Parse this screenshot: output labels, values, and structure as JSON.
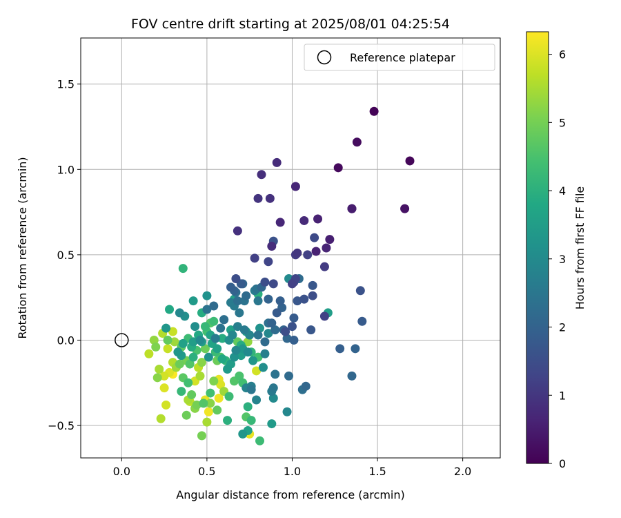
{
  "chart_data": {
    "type": "scatter",
    "title": "FOV centre drift starting at 2025/08/01 04:25:54",
    "xlabel": "Angular distance from reference (arcmin)",
    "ylabel": "Rotation from reference (arcmin)",
    "xlim": [
      -0.24,
      2.22
    ],
    "ylim": [
      -0.69,
      1.77
    ],
    "xticks": [
      0.0,
      0.5,
      1.0,
      1.5,
      2.0
    ],
    "xtick_labels": [
      "0.0",
      "0.5",
      "1.0",
      "1.5",
      "2.0"
    ],
    "yticks": [
      -0.5,
      0.0,
      0.5,
      1.0,
      1.5
    ],
    "ytick_labels": [
      "−0.5",
      "0.0",
      "0.5",
      "1.0",
      "1.5"
    ],
    "grid": true,
    "colormap": "viridis",
    "colorbar": {
      "label": "Hours from first FF file",
      "range": [
        0,
        6.33
      ],
      "ticks": [
        0,
        1,
        2,
        3,
        4,
        5,
        6
      ],
      "tick_labels": [
        "0",
        "1",
        "2",
        "3",
        "4",
        "5",
        "6"
      ]
    },
    "legend": {
      "position": "top-right",
      "entries": [
        "Reference platepar"
      ]
    },
    "reference_point": {
      "x": 0.0,
      "y": 0.0,
      "label": "Reference platepar"
    },
    "points": [
      [
        1.48,
        1.34,
        0.05
      ],
      [
        1.69,
        1.05,
        0.1
      ],
      [
        1.27,
        1.01,
        0.15
      ],
      [
        1.38,
        1.16,
        0.2
      ],
      [
        1.66,
        0.77,
        0.3
      ],
      [
        1.35,
        0.77,
        0.5
      ],
      [
        1.35,
        0.77,
        0.55
      ],
      [
        0.91,
        1.04,
        0.8
      ],
      [
        0.82,
        0.97,
        0.85
      ],
      [
        1.02,
        0.9,
        0.7
      ],
      [
        0.87,
        0.83,
        0.9
      ],
      [
        0.8,
        0.83,
        0.95
      ],
      [
        0.93,
        0.69,
        0.7
      ],
      [
        1.15,
        0.71,
        0.6
      ],
      [
        1.07,
        0.7,
        0.75
      ],
      [
        0.68,
        0.64,
        0.9
      ],
      [
        1.22,
        0.59,
        0.55
      ],
      [
        1.2,
        0.54,
        0.65
      ],
      [
        1.14,
        0.52,
        0.6
      ],
      [
        1.03,
        0.51,
        1.0
      ],
      [
        1.02,
        0.5,
        1.1
      ],
      [
        0.88,
        0.55,
        0.8
      ],
      [
        0.78,
        0.48,
        1.2
      ],
      [
        0.86,
        0.46,
        1.3
      ],
      [
        0.89,
        0.58,
        1.6
      ],
      [
        1.13,
        0.6,
        1.4
      ],
      [
        1.09,
        0.5,
        1.2
      ],
      [
        1.19,
        0.43,
        1.1
      ],
      [
        1.4,
        0.29,
        1.6
      ],
      [
        1.02,
        0.36,
        1.3
      ],
      [
        1.01,
        0.34,
        1.4
      ],
      [
        1.0,
        0.33,
        1.2
      ],
      [
        0.84,
        0.34,
        1.5
      ],
      [
        0.89,
        0.33,
        1.4
      ],
      [
        0.67,
        0.36,
        1.5
      ],
      [
        0.7,
        0.33,
        1.8
      ],
      [
        0.64,
        0.31,
        1.9
      ],
      [
        0.66,
        0.29,
        2.0
      ],
      [
        0.73,
        0.26,
        2.2
      ],
      [
        0.79,
        0.3,
        2.4
      ],
      [
        0.82,
        0.31,
        2.1
      ],
      [
        0.8,
        0.23,
        2.5
      ],
      [
        0.86,
        0.24,
        2.0
      ],
      [
        0.93,
        0.23,
        1.9
      ],
      [
        0.94,
        0.19,
        2.0
      ],
      [
        0.91,
        0.16,
        1.8
      ],
      [
        1.03,
        0.23,
        1.7
      ],
      [
        1.07,
        0.24,
        1.6
      ],
      [
        1.12,
        0.26,
        1.5
      ],
      [
        1.12,
        0.32,
        1.7
      ],
      [
        1.19,
        0.14,
        1.2
      ],
      [
        1.21,
        0.16,
        3.5
      ],
      [
        0.98,
        0.36,
        3.0
      ],
      [
        1.04,
        0.36,
        2.2
      ],
      [
        1.01,
        0.13,
        1.8
      ],
      [
        1.0,
        0.08,
        1.6
      ],
      [
        0.95,
        0.06,
        2.0
      ],
      [
        0.97,
        0.01,
        2.1
      ],
      [
        0.96,
        0.05,
        1.5
      ],
      [
        1.01,
        0.0,
        1.9
      ],
      [
        1.11,
        0.06,
        1.7
      ],
      [
        1.41,
        0.11,
        1.8
      ],
      [
        1.28,
        -0.05,
        1.9
      ],
      [
        1.37,
        -0.05,
        2.0
      ],
      [
        1.35,
        -0.21,
        2.1
      ],
      [
        0.98,
        -0.21,
        2.2
      ],
      [
        1.06,
        -0.29,
        2.3
      ],
      [
        1.08,
        -0.27,
        2.1
      ],
      [
        0.9,
        -0.2,
        2.4
      ],
      [
        0.89,
        -0.28,
        2.5
      ],
      [
        0.88,
        -0.3,
        2.6
      ],
      [
        0.89,
        -0.34,
        3.0
      ],
      [
        0.97,
        -0.42,
        2.9
      ],
      [
        0.88,
        -0.49,
        3.4
      ],
      [
        0.79,
        -0.35,
        2.8
      ],
      [
        0.76,
        -0.29,
        2.5
      ],
      [
        0.76,
        -0.27,
        2.7
      ],
      [
        0.83,
        -0.16,
        3.1
      ],
      [
        0.77,
        -0.12,
        3.3
      ],
      [
        0.74,
        -0.07,
        3.0
      ],
      [
        0.7,
        -0.09,
        3.5
      ],
      [
        0.66,
        -0.1,
        3.2
      ],
      [
        0.62,
        -0.17,
        3.4
      ],
      [
        0.59,
        -0.11,
        3.8
      ],
      [
        0.56,
        -0.05,
        3.6
      ],
      [
        0.63,
        0.0,
        3.1
      ],
      [
        0.65,
        0.03,
        2.9
      ],
      [
        0.68,
        0.08,
        2.7
      ],
      [
        0.72,
        0.06,
        2.6
      ],
      [
        0.75,
        0.03,
        2.8
      ],
      [
        0.8,
        0.03,
        2.4
      ],
      [
        0.84,
        -0.08,
        2.7
      ],
      [
        0.86,
        0.1,
        2.3
      ],
      [
        0.88,
        0.1,
        2.0
      ],
      [
        0.81,
        0.07,
        3.2
      ],
      [
        0.73,
        0.05,
        3.6
      ],
      [
        0.71,
        -0.05,
        3.3
      ],
      [
        0.69,
        0.16,
        2.5
      ],
      [
        0.66,
        0.24,
        3.6
      ],
      [
        0.72,
        0.23,
        2.4
      ],
      [
        0.64,
        0.22,
        2.6
      ],
      [
        0.6,
        0.12,
        2.3
      ],
      [
        0.58,
        0.07,
        2.4
      ],
      [
        0.55,
        0.01,
        2.6
      ],
      [
        0.5,
        0.18,
        2.4
      ],
      [
        0.5,
        0.26,
        3.2
      ],
      [
        0.42,
        0.23,
        3.4
      ],
      [
        0.37,
        0.14,
        3.1
      ],
      [
        0.34,
        0.16,
        2.9
      ],
      [
        0.28,
        0.18,
        3.8
      ],
      [
        0.26,
        0.07,
        3.3
      ],
      [
        0.36,
        0.42,
        4.1
      ],
      [
        0.47,
        0.16,
        3.9
      ],
      [
        0.49,
        0.08,
        4.2
      ],
      [
        0.5,
        0.05,
        4.4
      ],
      [
        0.52,
        0.1,
        4.6
      ],
      [
        0.54,
        0.11,
        4.3
      ],
      [
        0.52,
        0.03,
        3.7
      ],
      [
        0.46,
        0.0,
        3.0
      ],
      [
        0.42,
        -0.01,
        3.5
      ],
      [
        0.39,
        0.01,
        4.3
      ],
      [
        0.35,
        -0.04,
        4.7
      ],
      [
        0.31,
        -0.01,
        5.4
      ],
      [
        0.27,
        0.0,
        4.8
      ],
      [
        0.3,
        0.05,
        5.8
      ],
      [
        0.24,
        0.04,
        5.6
      ],
      [
        0.19,
        0.0,
        5.3
      ],
      [
        0.2,
        -0.04,
        5.1
      ],
      [
        0.16,
        -0.08,
        5.7
      ],
      [
        0.22,
        -0.17,
        5.5
      ],
      [
        0.21,
        -0.22,
        5.2
      ],
      [
        0.25,
        -0.21,
        5.9
      ],
      [
        0.28,
        -0.19,
        6.0
      ],
      [
        0.3,
        -0.2,
        6.3
      ],
      [
        0.32,
        -0.16,
        5.4
      ],
      [
        0.34,
        -0.14,
        4.9
      ],
      [
        0.35,
        -0.09,
        3.4
      ],
      [
        0.38,
        -0.12,
        5.0
      ],
      [
        0.4,
        -0.14,
        4.6
      ],
      [
        0.42,
        -0.1,
        4.0
      ],
      [
        0.45,
        -0.16,
        5.7
      ],
      [
        0.46,
        -0.21,
        5.5
      ],
      [
        0.43,
        -0.24,
        5.9
      ],
      [
        0.39,
        -0.25,
        4.4
      ],
      [
        0.36,
        -0.22,
        4.7
      ],
      [
        0.35,
        -0.3,
        4.2
      ],
      [
        0.39,
        -0.35,
        5.5
      ],
      [
        0.4,
        -0.36,
        5.7
      ],
      [
        0.44,
        -0.38,
        5.0
      ],
      [
        0.41,
        -0.32,
        4.8
      ],
      [
        0.43,
        -0.4,
        5.2
      ],
      [
        0.38,
        -0.44,
        4.9
      ],
      [
        0.26,
        -0.38,
        5.9
      ],
      [
        0.23,
        -0.46,
        5.6
      ],
      [
        0.25,
        -0.28,
        6.0
      ],
      [
        0.3,
        -0.13,
        5.6
      ],
      [
        0.27,
        -0.05,
        5.8
      ],
      [
        0.48,
        -0.37,
        4.6
      ],
      [
        0.51,
        -0.42,
        6.2
      ],
      [
        0.5,
        -0.48,
        5.5
      ],
      [
        0.47,
        -0.56,
        5.0
      ],
      [
        0.52,
        -0.31,
        4.4
      ],
      [
        0.54,
        -0.24,
        5.1
      ],
      [
        0.57,
        -0.23,
        6.1
      ],
      [
        0.58,
        -0.26,
        6.0
      ],
      [
        0.6,
        -0.3,
        5.4
      ],
      [
        0.63,
        -0.33,
        4.3
      ],
      [
        0.62,
        -0.47,
        4.0
      ],
      [
        0.56,
        -0.41,
        4.8
      ],
      [
        0.52,
        -0.37,
        5.2
      ],
      [
        0.49,
        -0.35,
        6.1
      ],
      [
        0.57,
        -0.34,
        6.2
      ],
      [
        0.66,
        -0.24,
        4.6
      ],
      [
        0.69,
        -0.21,
        4.5
      ],
      [
        0.71,
        -0.25,
        4.4
      ],
      [
        0.73,
        -0.28,
        2.8
      ],
      [
        0.74,
        -0.39,
        4.0
      ],
      [
        0.73,
        -0.45,
        4.6
      ],
      [
        0.76,
        -0.47,
        4.2
      ],
      [
        0.75,
        -0.55,
        6.1
      ],
      [
        0.74,
        -0.53,
        3.6
      ],
      [
        0.71,
        -0.55,
        3.3
      ],
      [
        0.81,
        -0.59,
        4.3
      ],
      [
        0.79,
        -0.18,
        5.9
      ],
      [
        0.8,
        -0.1,
        4.4
      ],
      [
        0.76,
        -0.07,
        4.1
      ],
      [
        0.68,
        -0.01,
        4.8
      ],
      [
        0.7,
        -0.03,
        3.9
      ],
      [
        0.74,
        -0.01,
        5.3
      ],
      [
        0.64,
        0.06,
        3.6
      ],
      [
        0.59,
        0.01,
        3.9
      ],
      [
        0.53,
        -0.02,
        3.7
      ],
      [
        0.49,
        -0.05,
        4.9
      ],
      [
        0.47,
        -0.01,
        3.4
      ],
      [
        0.45,
        0.03,
        3.8
      ],
      [
        0.43,
        0.08,
        3.1
      ],
      [
        0.51,
        -0.1,
        3.2
      ],
      [
        0.55,
        -0.07,
        4.3
      ],
      [
        0.58,
        -0.1,
        4.6
      ],
      [
        0.61,
        -0.12,
        4.1
      ],
      [
        0.64,
        -0.14,
        3.5
      ],
      [
        0.67,
        -0.06,
        2.9
      ],
      [
        0.56,
        -0.12,
        4.9
      ],
      [
        0.47,
        -0.13,
        5.2
      ],
      [
        0.44,
        -0.06,
        4.5
      ],
      [
        0.41,
        -0.04,
        3.9
      ],
      [
        0.36,
        -0.02,
        3.6
      ],
      [
        0.33,
        -0.07,
        3.3
      ],
      [
        0.54,
        0.2,
        2.2
      ],
      [
        0.6,
        0.12,
        2.5
      ],
      [
        0.66,
        0.2,
        2.6
      ],
      [
        0.75,
        0.03,
        3.0
      ],
      [
        0.84,
        -0.01,
        2.2
      ],
      [
        0.86,
        0.04,
        2.9
      ],
      [
        0.68,
        0.23,
        2.3
      ],
      [
        0.71,
        0.33,
        2.1
      ],
      [
        0.67,
        0.28,
        2.3
      ],
      [
        0.78,
        0.29,
        2.6
      ],
      [
        0.8,
        0.27,
        4.0
      ],
      [
        0.9,
        0.06,
        2.2
      ]
    ]
  }
}
